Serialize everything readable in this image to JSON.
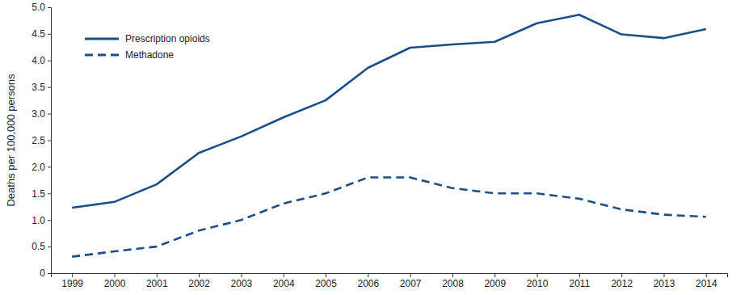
{
  "chart_data": {
    "type": "line",
    "y_label": "Deaths per 100,000 persons",
    "categories": [
      "1999",
      "2000",
      "2001",
      "2002",
      "2003",
      "2004",
      "2005",
      "2006",
      "2007",
      "2008",
      "2009",
      "2010",
      "2011",
      "2012",
      "2013",
      "2014"
    ],
    "series": [
      {
        "name": "Prescription opioids",
        "color": "#1b4f8a",
        "line_style": "solid",
        "values": [
          1.23,
          1.34,
          1.67,
          2.26,
          2.57,
          2.93,
          3.25,
          3.86,
          4.24,
          4.3,
          4.35,
          4.7,
          4.86,
          4.49,
          4.42,
          4.59
        ]
      },
      {
        "name": "Methadone",
        "color": "#1b4f8a",
        "line_style": "dashed",
        "values": [
          0.31,
          0.41,
          0.5,
          0.8,
          1.0,
          1.31,
          1.5,
          1.8,
          1.8,
          1.6,
          1.5,
          1.5,
          1.4,
          1.2,
          1.1,
          1.06
        ]
      }
    ],
    "ylim": [
      0,
      5
    ],
    "yticks": [
      0,
      0.5,
      {
        "value": 1,
        "label": "1.0"
      },
      1.5,
      {
        "value": 2,
        "label": "2.0"
      },
      2.5,
      {
        "value": 3,
        "label": "3.0"
      },
      3.5,
      {
        "value": 4,
        "label": "4.0"
      },
      4.5,
      {
        "value": 5,
        "label": "5.0"
      }
    ],
    "grid": false,
    "legend": "top-left"
  }
}
